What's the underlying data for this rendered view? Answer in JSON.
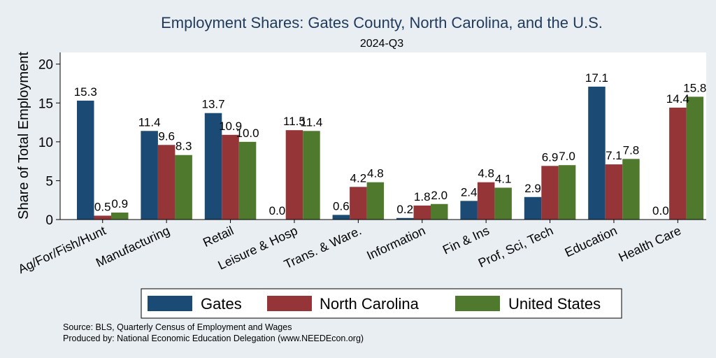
{
  "chart_data": {
    "type": "bar",
    "title": "Employment Shares: Gates County, North Carolina, and the U.S.",
    "subtitle": "2024-Q3",
    "ylabel": "Share of Total Employment",
    "xlabel": "",
    "ylim": [
      0,
      21.5
    ],
    "yticks": [
      0,
      5,
      10,
      15,
      20
    ],
    "grid": false,
    "legend_position": "bottom",
    "categories": [
      "Ag/For/Fish/Hunt",
      "Manufacturing",
      "Retail",
      "Leisure & Hosp",
      "Trans. & Ware.",
      "Information",
      "Fin & Ins",
      "Prof, Sci, Tech",
      "Education",
      "Health Care"
    ],
    "series": [
      {
        "name": "Gates",
        "color": "#1b4b75",
        "values": [
          15.3,
          11.4,
          13.7,
          0.0,
          0.6,
          0.2,
          2.4,
          2.9,
          17.1,
          0.0
        ]
      },
      {
        "name": "North Carolina",
        "color": "#953538",
        "values": [
          0.5,
          9.6,
          10.9,
          11.5,
          4.2,
          1.8,
          4.8,
          6.9,
          7.1,
          14.4
        ]
      },
      {
        "name": "United States",
        "color": "#4f7a2d",
        "values": [
          0.9,
          8.3,
          10.0,
          11.4,
          4.8,
          2.0,
          4.1,
          7.0,
          7.8,
          15.8
        ]
      }
    ]
  },
  "notes": {
    "source": "Source: BLS, Quarterly Census of Employment and Wages",
    "produced": "Produced by: National Economic Education Delegation (www.NEEDEcon.org)"
  }
}
